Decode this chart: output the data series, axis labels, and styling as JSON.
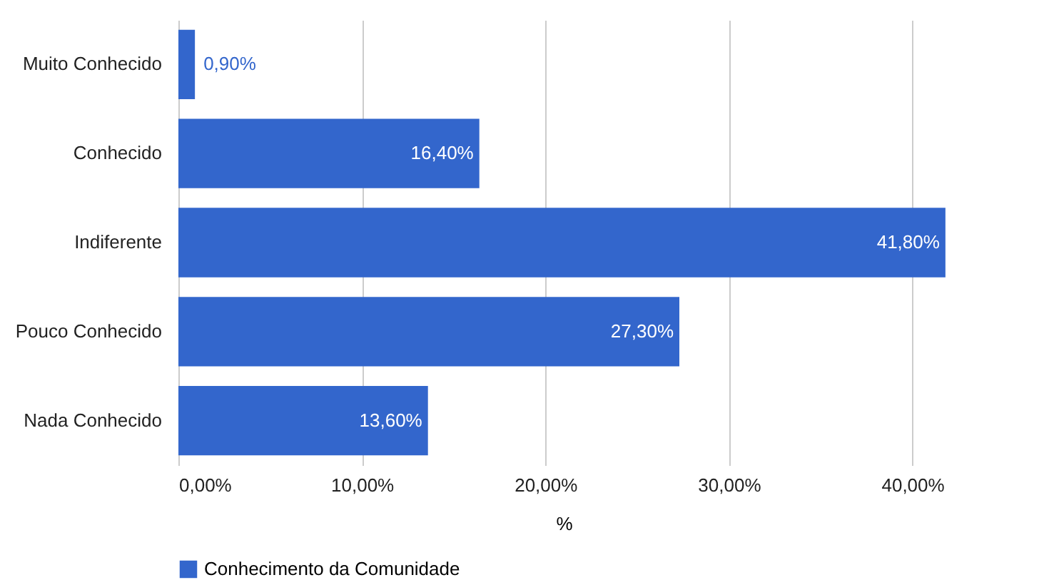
{
  "chart_data": {
    "type": "bar",
    "orientation": "horizontal",
    "categories": [
      "Muito Conhecido",
      "Conhecido",
      "Indiferente",
      "Pouco Conhecido",
      "Nada Conhecido"
    ],
    "series": [
      {
        "name": "Conhecimento da Comunidade",
        "color": "#3366cc",
        "values": [
          0.9,
          16.4,
          41.8,
          27.3,
          13.6
        ],
        "value_labels": [
          "0,90%",
          "16,40%",
          "41,80%",
          "27,30%",
          "13,60%"
        ]
      }
    ],
    "xlabel": "%",
    "xlim": [
      0,
      42
    ],
    "xticks": [
      {
        "value": 0,
        "label": "0,00%"
      },
      {
        "value": 10,
        "label": "10,00%"
      },
      {
        "value": 20,
        "label": "20,00%"
      },
      {
        "value": 30,
        "label": "30,00%"
      },
      {
        "value": 40,
        "label": "40,00%"
      }
    ],
    "grid": "x",
    "legend": "bottom"
  }
}
